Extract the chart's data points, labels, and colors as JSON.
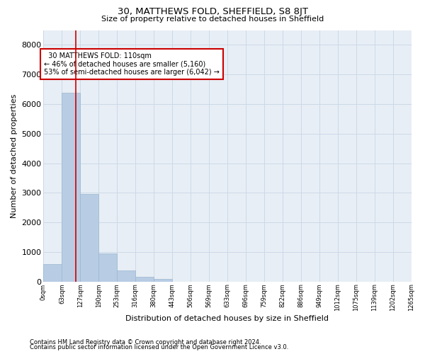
{
  "title": "30, MATTHEWS FOLD, SHEFFIELD, S8 8JT",
  "subtitle": "Size of property relative to detached houses in Sheffield",
  "xlabel": "Distribution of detached houses by size in Sheffield",
  "ylabel": "Number of detached properties",
  "footnote1": "Contains HM Land Registry data © Crown copyright and database right 2024.",
  "footnote2": "Contains public sector information licensed under the Open Government Licence v3.0.",
  "bar_color": "#b8cce4",
  "bar_edge_color": "#9ab8d0",
  "annotation_box_color": "#cc0000",
  "vline_color": "#cc0000",
  "grid_color": "#ccd9e8",
  "bg_color": "#e8eef5",
  "property_size_bin": 1.75,
  "property_label": "30 MATTHEWS FOLD: 110sqm",
  "pct_smaller": 46,
  "n_smaller": 5160,
  "pct_larger": 53,
  "n_larger": 6042,
  "bin_labels": [
    "0sqm",
    "63sqm",
    "127sqm",
    "190sqm",
    "253sqm",
    "316sqm",
    "380sqm",
    "443sqm",
    "506sqm",
    "569sqm",
    "633sqm",
    "696sqm",
    "759sqm",
    "822sqm",
    "886sqm",
    "949sqm",
    "1012sqm",
    "1075sqm",
    "1139sqm",
    "1202sqm",
    "1265sqm"
  ],
  "bar_heights": [
    590,
    6380,
    2950,
    960,
    370,
    155,
    80,
    0,
    0,
    0,
    0,
    0,
    0,
    0,
    0,
    0,
    0,
    0,
    0,
    0
  ],
  "n_bins": 20,
  "ylim": [
    0,
    8500
  ],
  "yticks": [
    0,
    1000,
    2000,
    3000,
    4000,
    5000,
    6000,
    7000,
    8000
  ]
}
